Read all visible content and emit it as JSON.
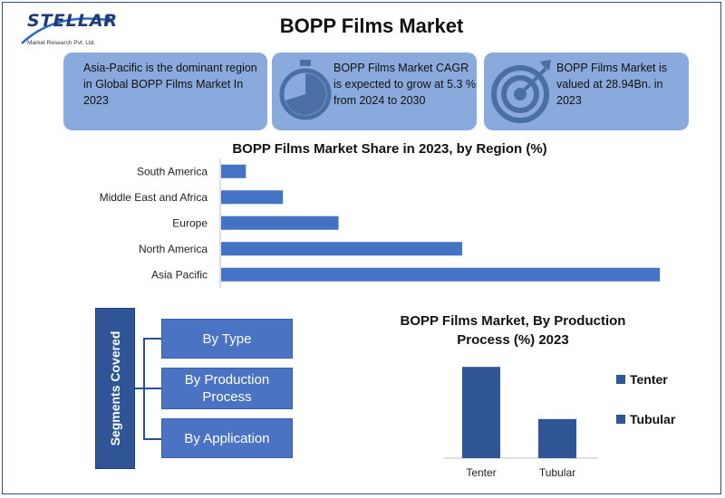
{
  "title": "BOPP Films Market",
  "logo": {
    "brand": "STELLAR",
    "subtitle": "Market Research Pvt. Ltd."
  },
  "cards": [
    {
      "text": "Asia-Pacific is the dominant region in Global BOPP Films Market In 2023",
      "icon": ""
    },
    {
      "text": "BOPP Films Market CAGR is expected to grow at 5.3 % from 2024 to 2030",
      "icon": "stopwatch-icon"
    },
    {
      "text": "BOPP Films Market is valued at 28.94Bn. in 2023",
      "icon": "target-icon"
    }
  ],
  "segments": {
    "label": "Segments Covered",
    "items": [
      "By Type",
      "By Production Process",
      "By Application"
    ]
  },
  "colors": {
    "primary": "#4472c4",
    "dark": "#2f5597",
    "card": "#8aa9dc",
    "border": "#2b4f8f"
  },
  "chart_data": [
    {
      "type": "bar",
      "orientation": "horizontal",
      "title": "BOPP Films Market Share in 2023, by Region (%)",
      "categories": [
        "South America",
        "Middle East and Africa",
        "Europe",
        "North America",
        "Asia Pacific"
      ],
      "values": [
        4,
        10,
        19,
        39,
        71
      ],
      "xlim": [
        0,
        72
      ],
      "grid": false,
      "legend": "none"
    },
    {
      "type": "bar",
      "title": "BOPP Films Market, By Production Process (%) 2023",
      "categories": [
        "Tenter",
        "Tubular"
      ],
      "values": [
        70,
        30
      ],
      "ylim": [
        0,
        75
      ],
      "legend": "right",
      "legend_entries": [
        "Tenter",
        "Tubular"
      ]
    }
  ]
}
